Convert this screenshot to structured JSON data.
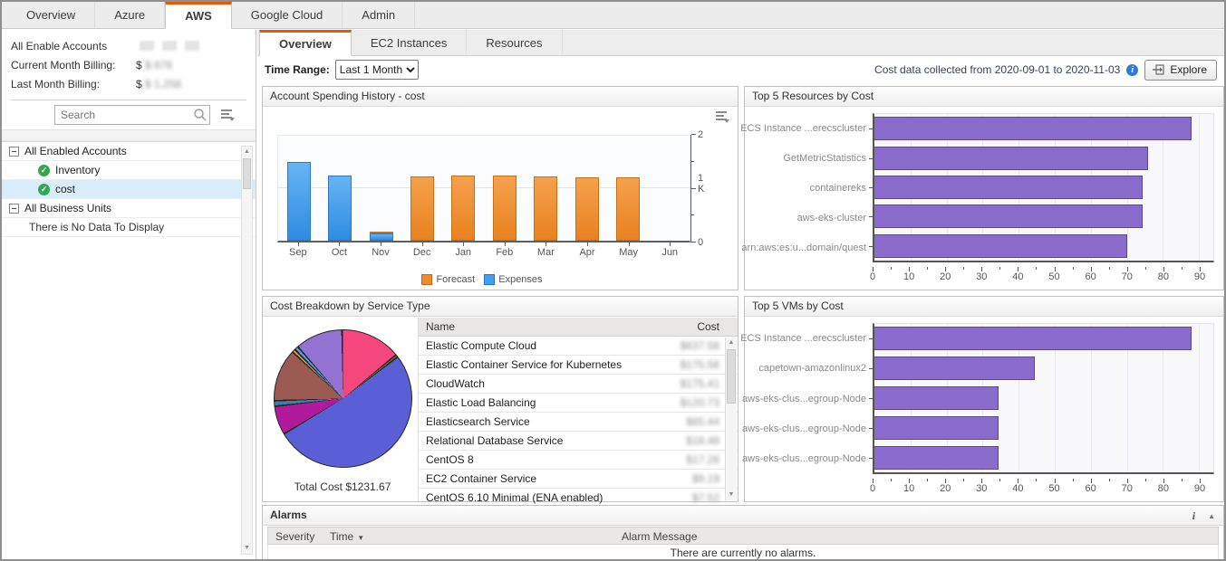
{
  "colors": {
    "accent_orange": "#e8590c",
    "bar_purple": "#8a6ccd",
    "bar_blue": "#42a0ee",
    "bar_orange": "#ef8b2e",
    "selected_row": "#d8ecfa"
  },
  "top_tabs": {
    "items": [
      "Overview",
      "Azure",
      "AWS",
      "Google Cloud",
      "Admin"
    ],
    "active": "AWS"
  },
  "sidebar": {
    "summary": {
      "title": "All Enable Accounts",
      "current_label": "Current Month Billing:",
      "current_value": "$ 878",
      "last_label": "Last Month Billing:",
      "last_value": "$ 1,258",
      "values_blurred": true
    },
    "search": {
      "placeholder": "Search"
    },
    "tree": [
      {
        "label": "All Enabled Accounts",
        "type": "group"
      },
      {
        "label": "Inventory",
        "type": "check"
      },
      {
        "label": "cost",
        "type": "check",
        "selected": true
      },
      {
        "label": "All Business Units",
        "type": "group"
      },
      {
        "label": "There is No Data To Display",
        "type": "plain"
      }
    ]
  },
  "main": {
    "tabs": [
      "Overview",
      "EC2 Instances",
      "Resources"
    ],
    "active_tab": "Overview",
    "toolbar": {
      "time_range_label": "Time Range:",
      "time_range_value": "Last 1 Month",
      "collected_text": "Cost data collected from 2020-09-01 to 2020-11-03",
      "explore_label": "Explore"
    }
  },
  "chart_data": [
    {
      "id": "spending",
      "type": "bar",
      "title": "Account Spending History - cost",
      "categories": [
        "Sep",
        "Oct",
        "Nov",
        "Dec",
        "Jan",
        "Feb",
        "Mar",
        "Apr",
        "May",
        "Jun"
      ],
      "series": [
        {
          "name": "Expenses",
          "color": "#42a0ee",
          "values": [
            1500,
            1250,
            140,
            0,
            0,
            0,
            0,
            0,
            0,
            0
          ]
        },
        {
          "name": "Forecast",
          "color": "#ef8b2e",
          "values": [
            0,
            0,
            25,
            1220,
            1235,
            1235,
            1225,
            1210,
            1215,
            0
          ]
        }
      ],
      "ylim": [
        0,
        2000
      ],
      "yticks": [
        {
          "v": 0,
          "label": "0"
        },
        {
          "v": 500,
          "label": ""
        },
        {
          "v": 1000,
          "label": "1 K"
        },
        {
          "v": 1500,
          "label": ""
        },
        {
          "v": 2000,
          "label": "2"
        }
      ],
      "legend": [
        "Forecast",
        "Expenses"
      ],
      "legend_position": "bottom"
    },
    {
      "id": "top_resources",
      "type": "hbar",
      "title": "Top 5 Resources by Cost",
      "categories": [
        "ECS Instance ...erecscluster",
        "GetMetricStatistics",
        "containereks",
        "aws-eks-cluster",
        "arn:aws:es:u...domain/quest"
      ],
      "values": [
        88,
        76,
        74.5,
        74.5,
        70
      ],
      "xlim": [
        0,
        94
      ],
      "xticks": [
        0,
        10,
        20,
        30,
        40,
        50,
        60,
        70,
        80,
        90
      ],
      "bar_color": "#8a6ccd"
    },
    {
      "id": "service_breakdown",
      "type": "pie",
      "title": "Cost Breakdown by Service Type",
      "caption": "Total Cost $1231.67",
      "labels_visible": false,
      "slices": [
        {
          "pct": 14.2,
          "color": "#f5477e"
        },
        {
          "pct": 0.6,
          "color": "#8a8a3a"
        },
        {
          "pct": 51.8,
          "color": "#5a5fd6"
        },
        {
          "pct": 6.8,
          "color": "#b01a9b"
        },
        {
          "pct": 1.3,
          "color": "#3b7fb5"
        },
        {
          "pct": 12.4,
          "color": "#9b5b52"
        },
        {
          "pct": 0.8,
          "color": "#f59d28"
        },
        {
          "pct": 0.9,
          "color": "#49a9f5"
        },
        {
          "pct": 11.2,
          "color": "#9373d2"
        }
      ]
    },
    {
      "id": "top_vms",
      "type": "hbar",
      "title": "Top 5 VMs by Cost",
      "categories": [
        "ECS Instance ...erecscluster",
        "capetown-amazonlinux2",
        "aws-eks-clus...egroup-Node",
        "aws-eks-clus...egroup-Node",
        "aws-eks-clus...egroup-Node"
      ],
      "values": [
        88,
        44.5,
        34.5,
        34.5,
        34.5
      ],
      "xlim": [
        0,
        94
      ],
      "xticks": [
        0,
        10,
        20,
        30,
        40,
        50,
        60,
        70,
        80,
        90
      ],
      "bar_color": "#8a6ccd"
    }
  ],
  "cost_table": {
    "columns": [
      "Name",
      "Cost"
    ],
    "costs_blurred": true,
    "rows": [
      {
        "name": "Elastic Compute Cloud",
        "cost": "$637.58"
      },
      {
        "name": "Elastic Container Service for Kubernetes",
        "cost": "$175.58"
      },
      {
        "name": "CloudWatch",
        "cost": "$175.41"
      },
      {
        "name": "Elastic Load Balancing",
        "cost": "$120.73"
      },
      {
        "name": "Elasticsearch Service",
        "cost": "$65.44"
      },
      {
        "name": "Relational Database Service",
        "cost": "$18.48"
      },
      {
        "name": "CentOS 8",
        "cost": "$17.28"
      },
      {
        "name": "EC2 Container Service",
        "cost": "$9.19"
      },
      {
        "name": "CentOS 6.10 Minimal (ENA enabled)",
        "cost": "$7.52"
      }
    ]
  },
  "alarms": {
    "title": "Alarms",
    "columns": [
      "Severity",
      "Time",
      "Alarm Message"
    ],
    "empty_message": "There are currently no alarms."
  }
}
